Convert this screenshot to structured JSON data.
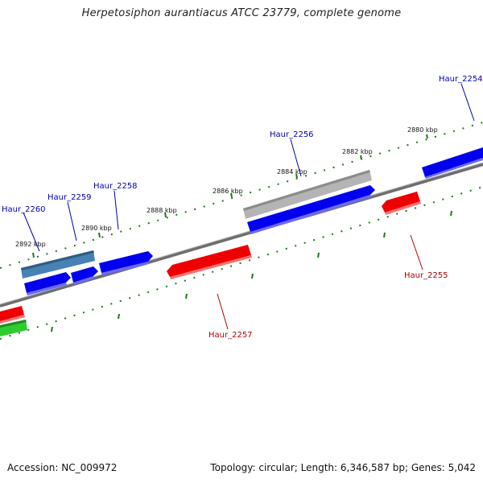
{
  "title": "Herpetosiphon aurantiacus ATCC 23779, complete genome",
  "footer": {
    "accession": "Accession: NC_009972",
    "summary": "Topology: circular; Length: 6,346,587 bp; Genes: 5,042"
  },
  "colors": {
    "backbone": "#808080",
    "tick": "#1a7a1a",
    "forward_gene": "#0000ee",
    "reverse_gene": "#ee0000",
    "other_gene": "#2ecc2e",
    "pseudo_gene": "#b0b0b0",
    "rna_gene": "#4682b4",
    "label_forward": "#0000b0",
    "label_reverse": "#b00000"
  },
  "ticks": [
    {
      "label": "2880 kbp"
    },
    {
      "label": "2882 kbp"
    },
    {
      "label": "2884 kbp"
    },
    {
      "label": "2886 kbp"
    },
    {
      "label": "2888 kbp"
    },
    {
      "label": "2890 kbp"
    },
    {
      "label": "2892 kbp"
    }
  ],
  "genes": [
    {
      "label": "Haur_2254",
      "strand": "forward"
    },
    {
      "label": "Haur_2255",
      "strand": "reverse"
    },
    {
      "label": "Haur_2256",
      "strand": "forward"
    },
    {
      "label": "Haur_2257",
      "strand": "reverse"
    },
    {
      "label": "Haur_2258",
      "strand": "forward"
    },
    {
      "label": "Haur_2259",
      "strand": "forward"
    },
    {
      "label": "Haur_2260",
      "strand": "forward"
    }
  ]
}
